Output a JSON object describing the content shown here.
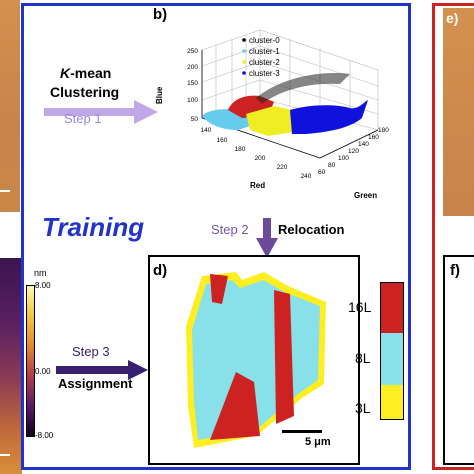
{
  "panels": {
    "b": {
      "label": "b)",
      "axes": {
        "z": "Blue",
        "x": "Red",
        "y": "Green"
      },
      "z_ticks": [
        "250",
        "200",
        "150",
        "100",
        "50"
      ],
      "x_ticks": [
        "140",
        "160",
        "180",
        "200",
        "220",
        "240"
      ],
      "y_ticks": [
        "60",
        "80",
        "100",
        "120",
        "140",
        "160",
        "180"
      ],
      "legend": [
        "cluster-0",
        "cluster-1",
        "cluster-2",
        "cluster-3"
      ]
    },
    "d": {
      "label": "d)",
      "scale_bar": "5 μm",
      "layers": [
        "16L",
        "8L",
        "3L"
      ]
    },
    "e": {
      "label": "e)"
    },
    "f": {
      "label": "f)"
    },
    "afm_colorbar": {
      "unit": "nm",
      "ticks": [
        "8.00",
        "0.00",
        "-8.00"
      ]
    }
  },
  "flow": {
    "kmean": {
      "k": "K",
      "rest": "-mean",
      "line2": "Clustering"
    },
    "step1": "Step 1",
    "training": "Training",
    "step2": "Step 2",
    "relocation": "Relocation",
    "step3": "Step 3",
    "assignment": "Assignment"
  },
  "colors": {
    "cluster0": "#000000",
    "cluster1": "#66ccee",
    "cluster2": "#eeee22",
    "cluster3": "#1111dd",
    "cluster_red": "#cc2222",
    "layer_16L": "#cc2222",
    "layer_8L": "#88e0e8",
    "layer_3L": "#ffee22",
    "frame_blue": "#2233cc",
    "frame_red": "#cc2222",
    "training": "#2233cc",
    "step1_arrow": "#c0a8e8",
    "step_arrow_dark": "#3a2070",
    "optical": "#d08a4c"
  }
}
